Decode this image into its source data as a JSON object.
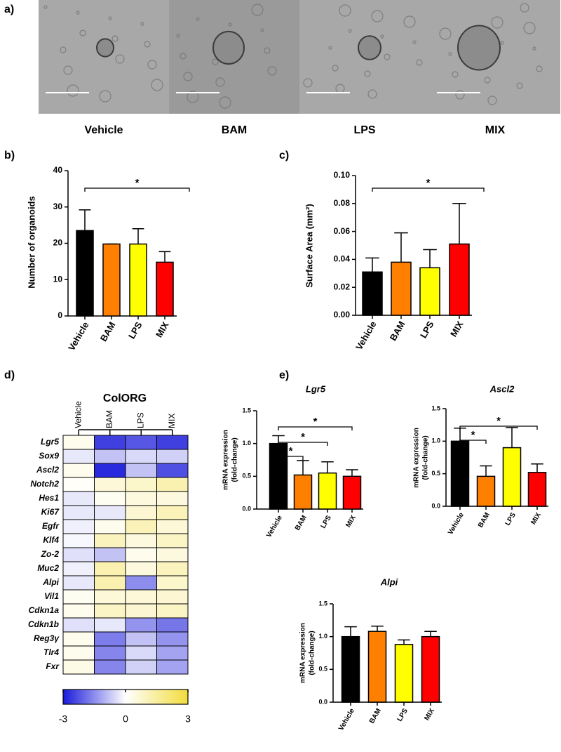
{
  "panel_a": {
    "label": "a)",
    "images": [
      "Vehicle",
      "BAM",
      "LPS",
      "MIX"
    ]
  },
  "chart_data": [
    {
      "type": "bar",
      "panel": "b)",
      "ylabel": [
        "Number of organoids"
      ],
      "categories": [
        "Vehicle",
        "BAM",
        "LPS",
        "MIX"
      ],
      "values": [
        23.5,
        19.8,
        19.8,
        14.8
      ],
      "errors": [
        5.7,
        0,
        4.2,
        2.9
      ],
      "colors": [
        "#000000",
        "#ff7f00",
        "#ffff00",
        "#ff0000"
      ],
      "ylim": [
        0,
        40
      ],
      "yticks": [
        0,
        10,
        20,
        30,
        40
      ],
      "significance": [
        {
          "groups": [
            "Vehicle",
            "MIX"
          ],
          "label": "*"
        }
      ]
    },
    {
      "type": "bar",
      "panel": "c)",
      "ylabel": [
        "Surface Area (mm²)"
      ],
      "categories": [
        "Vehicle",
        "BAM",
        "LPS",
        "MIX"
      ],
      "values": [
        0.031,
        0.038,
        0.034,
        0.051
      ],
      "errors": [
        0.01,
        0.021,
        0.013,
        0.029
      ],
      "colors": [
        "#000000",
        "#ff7f00",
        "#ffff00",
        "#ff0000"
      ],
      "ylim": [
        0,
        0.1
      ],
      "yticks": [
        {
          "value": 0,
          "label": "0.00"
        },
        {
          "value": 0.02,
          "label": "0.02"
        },
        {
          "value": 0.04,
          "label": "0.04"
        },
        {
          "value": 0.06,
          "label": "0.06"
        },
        {
          "value": 0.08,
          "label": "0.08"
        },
        {
          "value": 0.1,
          "label": "0.10"
        }
      ],
      "significance": [
        {
          "groups": [
            "Vehicle",
            "MIX"
          ],
          "label": "*"
        }
      ]
    },
    {
      "type": "heatmap",
      "panel": "d)",
      "title": "ColORG",
      "x": [
        "Vehicle",
        "BAM",
        "LPS",
        "MIX"
      ],
      "y": [
        "Lgr5",
        "Sox9",
        "Ascl2",
        "Notch2",
        "Hes1",
        "Ki67",
        "Egfr",
        "Klf4",
        "Zo-2",
        "Muc2",
        "Alpi",
        "Vil1",
        "Cdkn1a",
        "Cdkn1b",
        "Reg3γ",
        "Tlr4",
        "Fxr"
      ],
      "values": [
        [
          0.3,
          -2.5,
          -2.2,
          -2.5
        ],
        [
          -0.3,
          -0.8,
          -0.5,
          -0.6
        ],
        [
          0.3,
          -2.8,
          -0.8,
          -2.3
        ],
        [
          0.1,
          0.6,
          0.8,
          1.2
        ],
        [
          -0.3,
          0.2,
          0.5,
          0.5
        ],
        [
          -0.3,
          -0.3,
          0.7,
          1.1
        ],
        [
          -0.2,
          0.3,
          1.1,
          0.6
        ],
        [
          -0.1,
          1.0,
          0.5,
          0.9
        ],
        [
          -0.4,
          -0.8,
          0.3,
          0.5
        ],
        [
          -0.2,
          1.2,
          0.5,
          1.0
        ],
        [
          -0.3,
          1.2,
          -1.5,
          0.8
        ],
        [
          0.2,
          0.6,
          0.6,
          0.7
        ],
        [
          0.3,
          0.9,
          0.7,
          0.9
        ],
        [
          -0.4,
          -0.3,
          -1.4,
          -1.8
        ],
        [
          0.3,
          -1.7,
          -0.8,
          -1.4
        ],
        [
          0.3,
          -1.6,
          -0.5,
          -1.2
        ],
        [
          0.4,
          -1.6,
          -0.6,
          -1.2
        ]
      ],
      "colorscale": [
        "#1a1adb",
        "#ffffff",
        "#f2dc3c"
      ],
      "zlim": [
        -3,
        3
      ],
      "zticks": [
        -3,
        0,
        3
      ]
    },
    {
      "type": "bar",
      "panel": "e)",
      "title": "Lgr5",
      "ylabel": [
        "mRNA expression",
        "(fold-change)"
      ],
      "categories": [
        "Vehicle",
        "BAM",
        "LPS",
        "MIX"
      ],
      "values": [
        1.0,
        0.52,
        0.55,
        0.5
      ],
      "errors": [
        0.12,
        0.22,
        0.17,
        0.1
      ],
      "colors": [
        "#000000",
        "#ff7f00",
        "#ffff00",
        "#ff0000"
      ],
      "ylim": [
        0,
        1.5
      ],
      "yticks": [
        {
          "value": 0,
          "label": "0.0"
        },
        {
          "value": 0.5,
          "label": "0.5"
        },
        {
          "value": 1,
          "label": "1.0"
        },
        {
          "value": 1.5,
          "label": "1.5"
        }
      ],
      "significance": [
        {
          "groups": [
            "Vehicle",
            "BAM"
          ],
          "label": "*"
        },
        {
          "groups": [
            "Vehicle",
            "LPS"
          ],
          "label": "*"
        },
        {
          "groups": [
            "Vehicle",
            "MIX"
          ],
          "label": "*"
        }
      ]
    },
    {
      "type": "bar",
      "title": "Ascl2",
      "ylabel": [
        "mRNA expression",
        "(fold-change)"
      ],
      "categories": [
        "Vehicle",
        "BAM",
        "LPS",
        "MIX"
      ],
      "values": [
        1.0,
        0.46,
        0.9,
        0.52
      ],
      "errors": [
        0.2,
        0.16,
        0.31,
        0.13
      ],
      "colors": [
        "#000000",
        "#ff7f00",
        "#ffff00",
        "#ff0000"
      ],
      "ylim": [
        0,
        1.5
      ],
      "yticks": [
        {
          "value": 0,
          "label": "0.0"
        },
        {
          "value": 0.5,
          "label": "0.5"
        },
        {
          "value": 1,
          "label": "1.0"
        },
        {
          "value": 1.5,
          "label": "1.5"
        }
      ],
      "significance": [
        {
          "groups": [
            "Vehicle",
            "BAM"
          ],
          "label": "*"
        },
        {
          "groups": [
            "Vehicle",
            "MIX"
          ],
          "label": "*"
        }
      ]
    },
    {
      "type": "bar",
      "title": "Alpi",
      "ylabel": [
        "mRNA expression",
        "(fold-change)"
      ],
      "categories": [
        "Vehicle",
        "BAM",
        "LPS",
        "MIX"
      ],
      "values": [
        1.0,
        1.08,
        0.88,
        1.0
      ],
      "errors": [
        0.15,
        0.08,
        0.07,
        0.08
      ],
      "colors": [
        "#000000",
        "#ff7f00",
        "#ffff00",
        "#ff0000"
      ],
      "ylim": [
        0,
        1.5
      ],
      "yticks": [
        {
          "value": 0,
          "label": "0.0"
        },
        {
          "value": 0.5,
          "label": "0.5"
        },
        {
          "value": 1,
          "label": "1.0"
        },
        {
          "value": 1.5,
          "label": "1.5"
        }
      ]
    }
  ]
}
